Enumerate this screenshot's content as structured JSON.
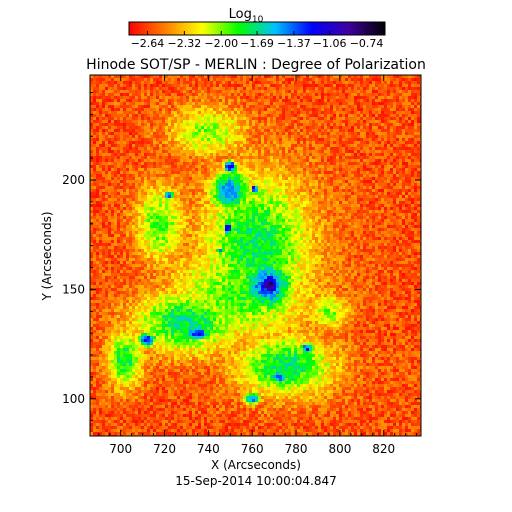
{
  "chart_data": {
    "type": "heatmap",
    "title": "Hinode SOT/SP - MERLIN : Degree of Polarization",
    "footer": "15-Sep-2014 10:00:04.847",
    "xlabel": "X (Arcseconds)",
    "ylabel": "Y (Arcseconds)",
    "xlim": [
      686,
      837
    ],
    "ylim": [
      83,
      248
    ],
    "xticks": [
      700,
      720,
      740,
      760,
      780,
      800,
      820
    ],
    "yticks": [
      100,
      150,
      200
    ],
    "colorbar": {
      "title_base": "Log",
      "title_sub": "10",
      "range": [
        -2.8,
        -0.58
      ],
      "tick_values": [
        -2.64,
        -2.32,
        -2.0,
        -1.69,
        -1.37,
        -1.06,
        -0.74
      ],
      "tick_labels": [
        "−2.64",
        "−2.32",
        "−2.00",
        "−1.69",
        "−1.37",
        "−1.06",
        "−0.74"
      ],
      "colormap": [
        "#ff0000",
        "#ff8000",
        "#ffff00",
        "#00ff00",
        "#00c0ff",
        "#0000ff",
        "#4000a0",
        "#000000"
      ]
    },
    "background_value": -2.6,
    "features": [
      {
        "kind": "umbra",
        "x": 768,
        "y": 152,
        "rx": 10,
        "ry": 11,
        "value": -0.8
      },
      {
        "kind": "pore",
        "x": 750,
        "y": 206,
        "rx": 5,
        "ry": 5,
        "value": -0.9
      },
      {
        "kind": "pore",
        "x": 749,
        "y": 178,
        "rx": 4,
        "ry": 5,
        "value": -0.9
      },
      {
        "kind": "pore",
        "x": 761,
        "y": 196,
        "rx": 3,
        "ry": 3,
        "value": -0.95
      },
      {
        "kind": "pore",
        "x": 745,
        "y": 168,
        "rx": 2,
        "ry": 2,
        "value": -1.0
      },
      {
        "kind": "plage",
        "x": 762,
        "y": 170,
        "rx": 32,
        "ry": 42,
        "value": -1.75
      },
      {
        "kind": "plage",
        "x": 755,
        "y": 148,
        "rx": 42,
        "ry": 28,
        "value": -1.9
      },
      {
        "kind": "plage",
        "x": 730,
        "y": 135,
        "rx": 30,
        "ry": 18,
        "value": -1.7
      },
      {
        "kind": "plage",
        "x": 775,
        "y": 115,
        "rx": 28,
        "ry": 17,
        "value": -1.7
      },
      {
        "kind": "plage",
        "x": 718,
        "y": 180,
        "rx": 14,
        "ry": 22,
        "value": -1.9
      },
      {
        "kind": "plage",
        "x": 740,
        "y": 222,
        "rx": 22,
        "ry": 14,
        "value": -2.0
      },
      {
        "kind": "plage",
        "x": 702,
        "y": 118,
        "rx": 10,
        "ry": 16,
        "value": -1.75
      },
      {
        "kind": "plage",
        "x": 795,
        "y": 140,
        "rx": 12,
        "ry": 10,
        "value": -2.0
      },
      {
        "kind": "penumbra",
        "x": 767,
        "y": 152,
        "rx": 22,
        "ry": 22,
        "value": -1.3
      },
      {
        "kind": "penumbra",
        "x": 750,
        "y": 195,
        "rx": 16,
        "ry": 18,
        "value": -1.4
      },
      {
        "kind": "patch",
        "x": 735,
        "y": 130,
        "rx": 10,
        "ry": 7,
        "value": -1.2
      },
      {
        "kind": "patch",
        "x": 712,
        "y": 127,
        "rx": 8,
        "ry": 6,
        "value": -1.25
      },
      {
        "kind": "patch",
        "x": 772,
        "y": 110,
        "rx": 8,
        "ry": 5,
        "value": -1.25
      },
      {
        "kind": "patch",
        "x": 785,
        "y": 123,
        "rx": 6,
        "ry": 5,
        "value": -1.3
      },
      {
        "kind": "patch",
        "x": 722,
        "y": 193,
        "rx": 4,
        "ry": 4,
        "value": -1.3
      },
      {
        "kind": "patch",
        "x": 760,
        "y": 100,
        "rx": 6,
        "ry": 5,
        "value": -1.3
      }
    ]
  }
}
